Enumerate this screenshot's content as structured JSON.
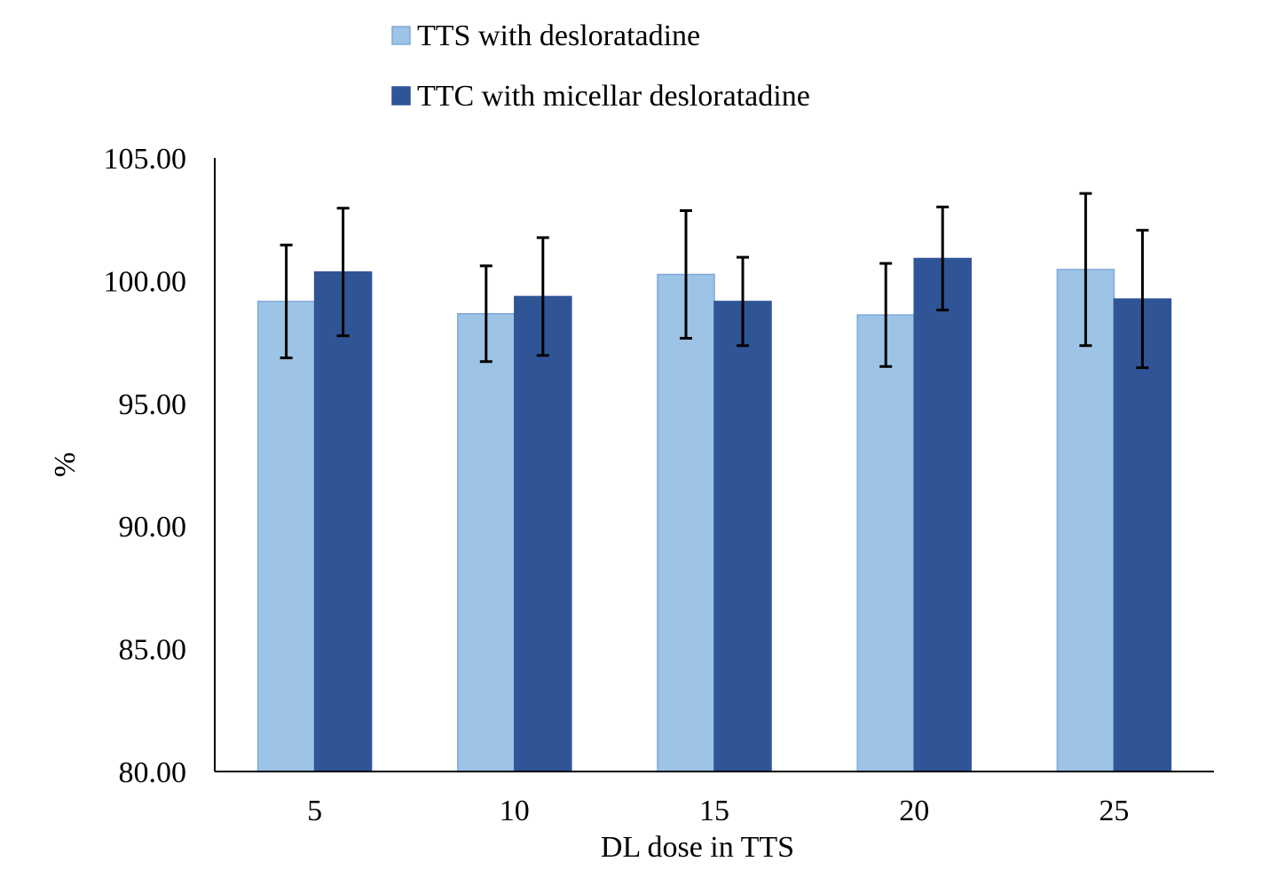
{
  "chart_data": {
    "type": "bar",
    "title": "",
    "xlabel": "DL dose in TTS",
    "ylabel": "%",
    "ylim": [
      80,
      105
    ],
    "yticks": [
      "80.00",
      "85.00",
      "90.00",
      "95.00",
      "100.00",
      "105.00"
    ],
    "ytick_values": [
      80,
      85,
      90,
      95,
      100,
      105
    ],
    "categories": [
      "5",
      "10",
      "15",
      "20",
      "25"
    ],
    "grid": false,
    "legend_position": "top",
    "series": [
      {
        "name": "TTS with desloratadine",
        "color": "#9DC3E6",
        "border": "#7FA8D8",
        "values": [
          99.15,
          98.65,
          100.25,
          98.6,
          100.45
        ],
        "error": [
          2.3,
          1.95,
          2.6,
          2.1,
          3.1
        ]
      },
      {
        "name": "TTC with micellar desloratadine",
        "color": "#2F5597",
        "border": "#2F5597",
        "values": [
          100.35,
          99.35,
          99.15,
          100.9,
          99.25
        ],
        "error": [
          2.6,
          2.4,
          1.8,
          2.1,
          2.8
        ]
      }
    ]
  }
}
